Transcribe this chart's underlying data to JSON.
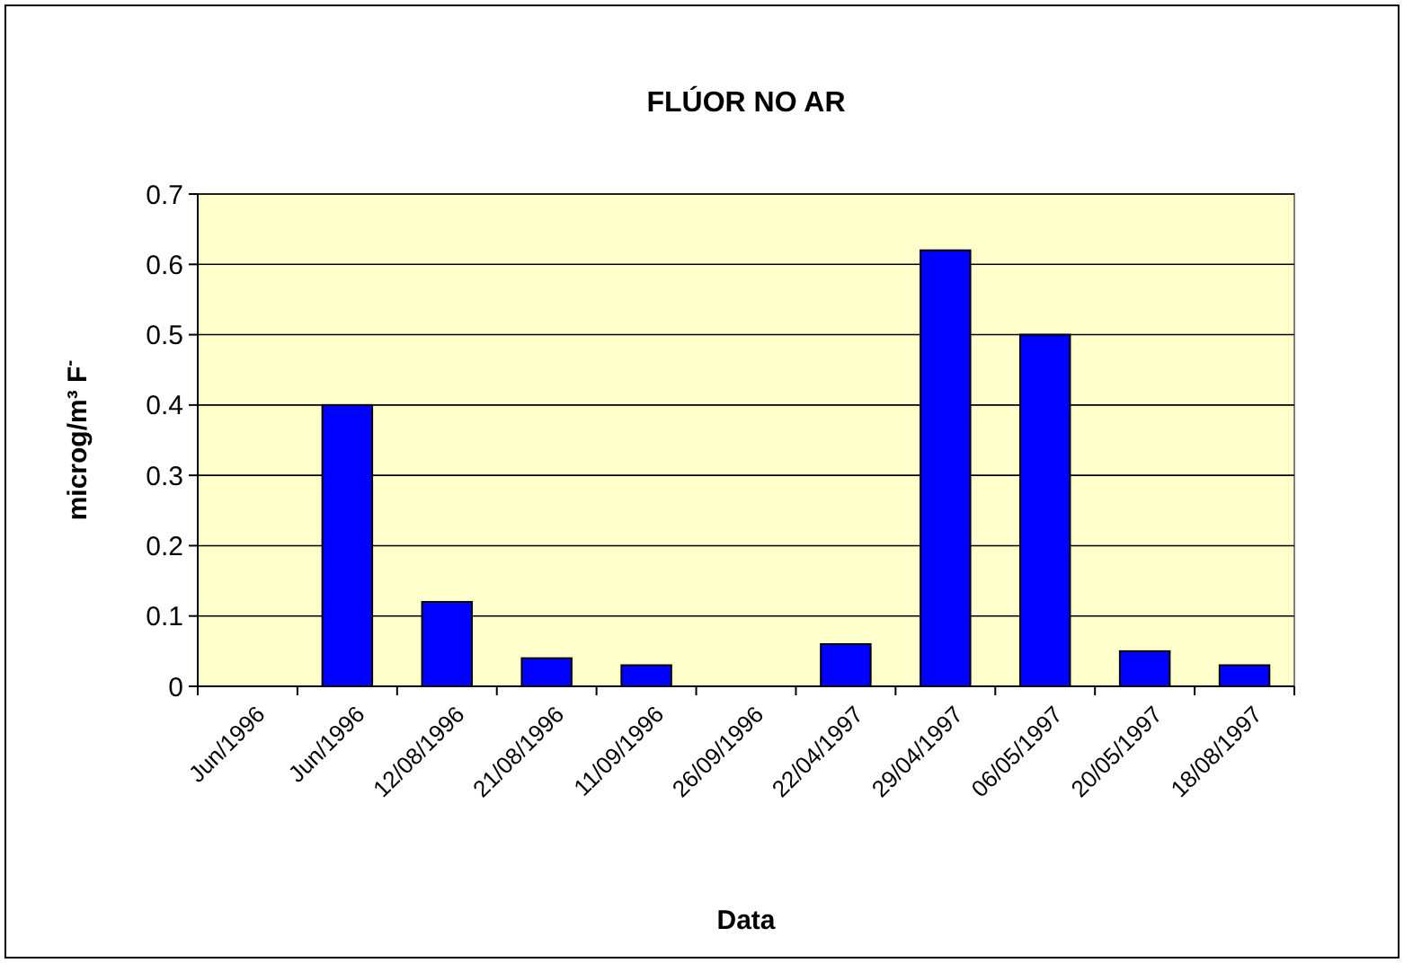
{
  "chart_data": {
    "type": "bar",
    "title": "FLÚOR NO AR",
    "xlabel": "Data",
    "ylabel": "microg/m³ F$^{-}$",
    "categories": [
      "Jun/1996",
      "Jun/1996",
      "12/08/1996",
      "21/08/1996",
      "11/09/1996",
      "26/09/1996",
      "22/04/1997",
      "29/04/1997",
      "06/05/1997",
      "20/05/1997",
      "18/08/1997"
    ],
    "values": [
      null,
      0.4,
      0.12,
      0.04,
      0.03,
      null,
      0.06,
      0.62,
      0.5,
      0.05,
      0.03
    ],
    "color": "#0000ff",
    "ylim": [
      0,
      0.7
    ],
    "yticks": [
      0,
      0.1,
      0.2,
      0.3,
      0.4,
      0.5,
      0.6,
      0.7
    ],
    "grid": "y"
  }
}
